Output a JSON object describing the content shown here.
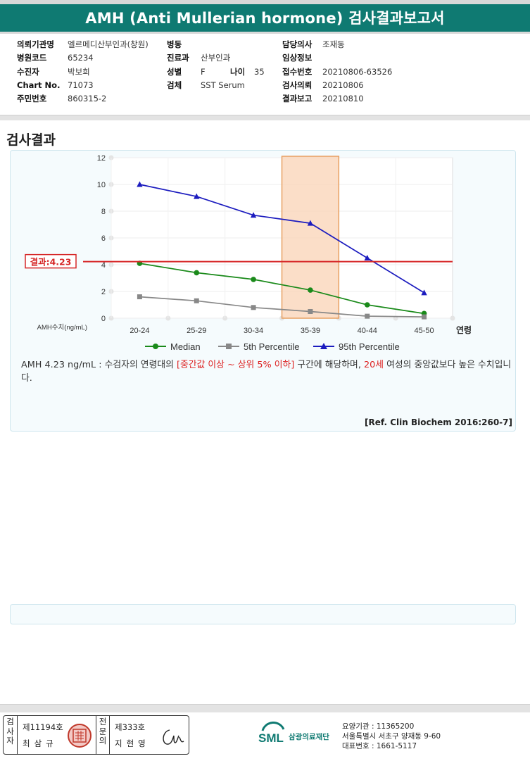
{
  "header": {
    "title": "AMH (Anti Mullerian hormone) 검사결과보고서"
  },
  "patient_info": {
    "col1": [
      {
        "label": "의뢰기관명",
        "value": "엘르메디산부인과(창원)"
      },
      {
        "label": "병원코드",
        "value": "65234"
      },
      {
        "label": "수진자",
        "value": "박보희"
      },
      {
        "label": "Chart No.",
        "value": "71073"
      },
      {
        "label": "주민번호",
        "value": "860315-2"
      }
    ],
    "col2": [
      {
        "label": "병동",
        "value": ""
      },
      {
        "label": "진료과",
        "value": "산부인과"
      },
      {
        "label": "성별",
        "value": "F"
      },
      {
        "label": "검체",
        "value": "SST Serum"
      }
    ],
    "age": {
      "label": "나이",
      "value": "35"
    },
    "col3": [
      {
        "label": "담당의사",
        "value": "조재동"
      },
      {
        "label": "임상정보",
        "value": ""
      },
      {
        "label": "접수번호",
        "value": "20210806-63526"
      },
      {
        "label": "검사의뢰",
        "value": "20210806"
      },
      {
        "label": "결과보고",
        "value": "20210810"
      }
    ]
  },
  "section": {
    "title": "검사결과"
  },
  "chart_data": {
    "type": "line",
    "categories": [
      "20-24",
      "25-29",
      "30-34",
      "35-39",
      "40-44",
      "45-50"
    ],
    "ylim": [
      0,
      12
    ],
    "yticks": [
      "0",
      "2",
      "4",
      "6",
      "8",
      "10",
      "12"
    ],
    "ylabel": "AMH수치(ng/mL)",
    "xlabel": "연령",
    "highlight_category": "35-39",
    "result_line": {
      "label": "결과:4.23",
      "value": 4.23,
      "color": "#d62728"
    },
    "series": [
      {
        "name": "Median",
        "color": "#1a8a1a",
        "marker": "circle",
        "values": [
          4.1,
          3.4,
          2.9,
          2.1,
          1.0,
          0.35
        ]
      },
      {
        "name": "5th Percentile",
        "color": "#888888",
        "marker": "square",
        "values": [
          1.6,
          1.3,
          0.8,
          0.5,
          0.15,
          0.1
        ]
      },
      {
        "name": "95th Percentile",
        "color": "#1c1cbf",
        "marker": "triangle",
        "values": [
          10.0,
          9.1,
          7.7,
          7.1,
          4.5,
          1.9
        ]
      }
    ],
    "grid": true,
    "legend_position": "bottom"
  },
  "result_text": {
    "part1": "AMH  4.23 ng/mL : 수검자의 연령대의 ",
    "highlight1": "[중간값 이상 ~ 상위 5% 이하]",
    "part2": "  구간에 해당하며, ",
    "highlight2": "20세",
    "part3": " 여성의 중앙값보다 높은 수치입니다."
  },
  "reference": "[Ref. Clin Biochem 2016:260-7]",
  "footer": {
    "inspector_label": "검사자",
    "inspector_no": "제11194호",
    "inspector_name": "최삼규",
    "specialist_label": "전문의",
    "specialist_no": "제333호",
    "specialist_name": "지현영",
    "logo_text": "SML",
    "org_name": "삼광의료재단",
    "org_lines": [
      "요양기관 : 11365200",
      "서울특별시 서초구 양재동 9-60",
      "대표번호 : 1661-5117"
    ]
  }
}
